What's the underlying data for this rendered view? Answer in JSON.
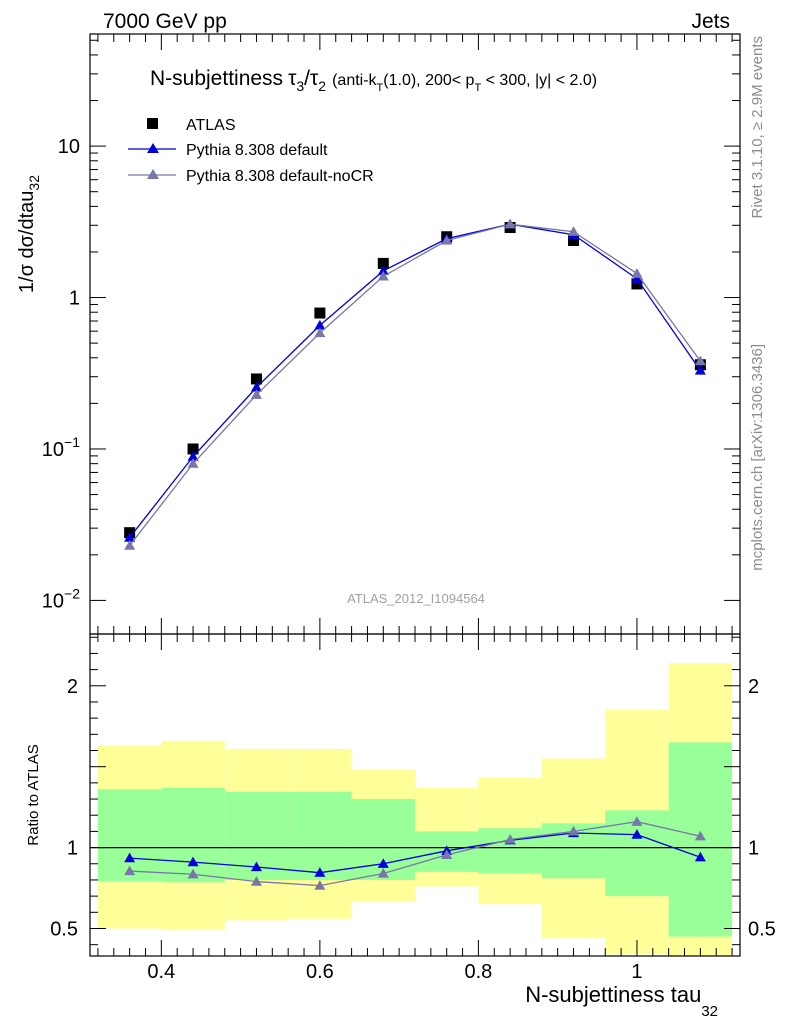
{
  "header": {
    "left": "7000 GeV pp",
    "right": "Jets"
  },
  "plot_title": {
    "main": "N-subjettiness",
    "tau3": "τ",
    "sub3": "3",
    "slash": "/",
    "tau2": "τ",
    "sub2": "2",
    "cuts_a": "(anti-k",
    "cuts_T": "T",
    "cuts_b": "(1.0), 200< p",
    "cuts_pT": "T",
    "cuts_c": " < 300, |y| < 2.0)"
  },
  "side_labels": {
    "rivet": "Rivet 3.1.10, ≥ 2.9M events",
    "mcplots": "mcplots.cern.ch [arXiv:1306.3436]"
  },
  "analysis_id": "ATLAS_2012_I1094564",
  "colors": {
    "data": "#000000",
    "default": "#0000dd",
    "nocr": "#7777aa",
    "band_inner": "#99ff99",
    "band_outer": "#ffff99"
  },
  "chart_data": {
    "type": "line",
    "main_panel": {
      "ylabel": "1/σ dσ/dtau",
      "ylabel_sub": "32",
      "yscale": "log",
      "ylim": [
        0.006,
        55
      ],
      "yticks": [
        {
          "value": 0.01,
          "base": "10",
          "exp": "−2"
        },
        {
          "value": 0.1,
          "base": "10",
          "exp": "−1"
        },
        {
          "value": 1,
          "base": "1",
          "exp": ""
        },
        {
          "value": 10,
          "base": "10",
          "exp": ""
        }
      ]
    },
    "ratio_panel": {
      "ylabel": "Ratio to ATLAS",
      "ylim": [
        0.33,
        2.32
      ],
      "yticks": [
        {
          "value": 0.5,
          "label": "0.5"
        },
        {
          "value": 1,
          "label": "1"
        },
        {
          "value": 2,
          "label": "2"
        }
      ]
    },
    "x_axis": {
      "label": "N-subjettiness tau",
      "label_sub": "32",
      "xlim": [
        0.31,
        1.13
      ],
      "ticks": [
        {
          "value": 0.4,
          "label": "0.4"
        },
        {
          "value": 0.6,
          "label": "0.6"
        },
        {
          "value": 0.8,
          "label": "0.8"
        },
        {
          "value": 1.0,
          "label": "1"
        }
      ]
    },
    "bins": [
      {
        "lo": 0.32,
        "hi": 0.4
      },
      {
        "lo": 0.4,
        "hi": 0.48
      },
      {
        "lo": 0.48,
        "hi": 0.56
      },
      {
        "lo": 0.56,
        "hi": 0.64
      },
      {
        "lo": 0.64,
        "hi": 0.72
      },
      {
        "lo": 0.72,
        "hi": 0.8
      },
      {
        "lo": 0.8,
        "hi": 0.88
      },
      {
        "lo": 0.88,
        "hi": 0.96
      },
      {
        "lo": 0.96,
        "hi": 1.04
      },
      {
        "lo": 1.04,
        "hi": 1.12
      }
    ],
    "x": [
      0.36,
      0.44,
      0.52,
      0.6,
      0.68,
      0.76,
      0.84,
      0.92,
      1.0,
      1.08
    ],
    "series": [
      {
        "name": "ATLAS",
        "marker": "square",
        "color": "#000000",
        "values": [
          0.028,
          0.1,
          0.29,
          0.79,
          1.68,
          2.52,
          2.9,
          2.38,
          1.23,
          0.36
        ]
      },
      {
        "name": "Pythia 8.308 default",
        "marker": "triangle",
        "color": "#0000dd",
        "values": [
          0.026,
          0.089,
          0.255,
          0.655,
          1.5,
          2.45,
          3.05,
          2.6,
          1.33,
          0.33
        ]
      },
      {
        "name": "Pythia 8.308 default-noCR",
        "marker": "triangle",
        "color": "#7777aa",
        "values": [
          0.023,
          0.08,
          0.228,
          0.583,
          1.38,
          2.38,
          3.05,
          2.72,
          1.44,
          0.38
        ]
      }
    ],
    "ratio_series": [
      {
        "name": "Pythia 8.308 default",
        "color": "#0000dd",
        "values": [
          0.935,
          0.91,
          0.88,
          0.845,
          0.9,
          0.98,
          1.045,
          1.09,
          1.08,
          0.94
        ]
      },
      {
        "name": "Pythia 8.308 default-noCR",
        "color": "#7777aa",
        "values": [
          0.855,
          0.835,
          0.79,
          0.765,
          0.84,
          0.955,
          1.05,
          1.1,
          1.16,
          1.07
        ]
      }
    ],
    "uncertainty_bands": {
      "inner_lo": [
        0.79,
        0.785,
        0.8,
        0.8,
        0.8,
        0.85,
        0.84,
        0.81,
        0.7,
        0.45
      ],
      "inner_hi": [
        1.36,
        1.37,
        1.345,
        1.345,
        1.3,
        1.1,
        1.12,
        1.15,
        1.23,
        1.65
      ],
      "outer_lo": [
        0.5,
        0.49,
        0.55,
        0.56,
        0.67,
        0.76,
        0.65,
        0.44,
        0.34,
        0.33
      ],
      "outer_hi": [
        1.63,
        1.66,
        1.61,
        1.61,
        1.48,
        1.37,
        1.43,
        1.55,
        1.85,
        2.14
      ]
    }
  }
}
